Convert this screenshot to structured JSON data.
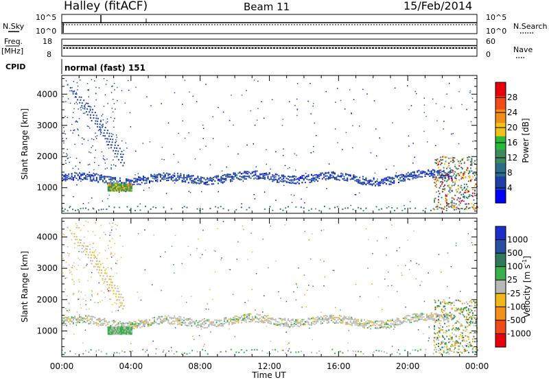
{
  "header": {
    "station": "Halley (fitACF)",
    "beam": "Beam 11",
    "date": "15/Feb/2014"
  },
  "noise_panel": {
    "left_label": "N.Sky",
    "left_ticks": [
      "10^5",
      "10^0"
    ],
    "right_label": "N.Search",
    "right_ticks": [
      "10^5",
      "10^0"
    ]
  },
  "freq_panel": {
    "left_label_top": "Freq.",
    "left_label_unit": "[MHz]",
    "left_ticks": [
      "18",
      "8"
    ],
    "right_label": "Nave",
    "right_ticks": [
      "60",
      "0"
    ]
  },
  "cpid": {
    "label": "CPID",
    "mode_text": "normal (fast) 151"
  },
  "colors": {
    "power_scale": [
      "#0000ff",
      "#1d3fa6",
      "#2a6c8a",
      "#3e8a5e",
      "#2ab83a",
      "#f2c21a",
      "#f28c1a",
      "#f24a1a",
      "#e8000a"
    ],
    "velocity_scale": [
      "#1b30c8",
      "#2a4fa0",
      "#2f7a5a",
      "#39b04a",
      "#b8b8b8",
      "#f2b81a",
      "#f2901a",
      "#f24a1a",
      "#e8000a"
    ]
  },
  "chart_data": [
    {
      "type": "heatmap",
      "title": "",
      "xlabel": "Time UT",
      "ylabel": "Slant Range [km]",
      "x_ticks": [
        "00:00",
        "04:00",
        "08:00",
        "12:00",
        "16:00",
        "20:00",
        "00:00"
      ],
      "y_ticks": [
        "1000",
        "2000",
        "3000",
        "4000"
      ],
      "xlim": [
        "00:00",
        "24:00"
      ],
      "ylim": [
        180,
        4600
      ],
      "colorbar": {
        "label": "Power [dB]",
        "ticks": [
          "4",
          "8",
          "12",
          "16",
          "20",
          "24",
          "28"
        ],
        "range": [
          0,
          32
        ]
      },
      "features": [
        {
          "start": "00:00",
          "end": "21:30",
          "range_km": [
            1100,
            1500
          ],
          "value": "6-10"
        },
        {
          "start": "02:40",
          "end": "04:00",
          "range_km": [
            900,
            1150
          ],
          "value": "12-24"
        },
        {
          "start": "00:30",
          "end": "03:30",
          "range_km": [
            1600,
            4300
          ],
          "value": "6-8"
        },
        {
          "start": "21:30",
          "end": "24:00",
          "range_km": [
            300,
            2000
          ],
          "value": "8-28"
        }
      ]
    },
    {
      "type": "heatmap",
      "title": "",
      "xlabel": "Time UT",
      "ylabel": "Slant Range [km]",
      "x_ticks": [
        "00:00",
        "04:00",
        "08:00",
        "12:00",
        "16:00",
        "20:00",
        "00:00"
      ],
      "y_ticks": [
        "1000",
        "2000",
        "3000",
        "4000"
      ],
      "xlim": [
        "00:00",
        "24:00"
      ],
      "ylim": [
        180,
        4600
      ],
      "colorbar": {
        "label": "Velocity [m s^-1]",
        "label_text": "Velocity [m s",
        "label_sup": "-1",
        "label_tail": "]",
        "ticks": [
          "1000",
          "500",
          "100",
          "25",
          "-25",
          "-100",
          "-500",
          "-1000"
        ],
        "range": [
          -1200,
          1200
        ]
      },
      "features": [
        {
          "start": "00:00",
          "end": "21:30",
          "range_km": [
            1100,
            1500
          ],
          "value": "-25 to 25"
        },
        {
          "start": "02:40",
          "end": "04:00",
          "range_km": [
            900,
            1150
          ],
          "value": "25 to 100"
        },
        {
          "start": "21:30",
          "end": "24:00",
          "range_km": [
            300,
            2000
          ],
          "value": "-500 to 500"
        }
      ]
    }
  ]
}
